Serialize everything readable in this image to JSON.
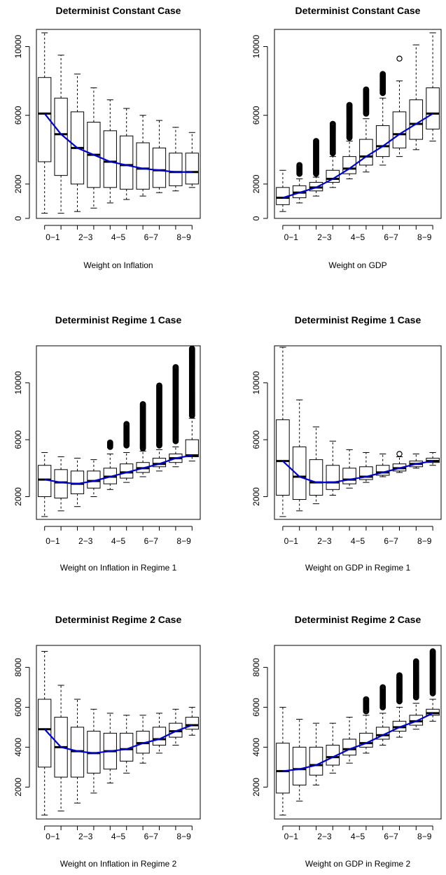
{
  "chart_data": [
    {
      "type": "box",
      "title": "Determinist Constant Case",
      "xlabel": "Weight on Inflation",
      "ylabel": "",
      "ylim": [
        0,
        11000
      ],
      "yticks": [
        0,
        2000,
        6000,
        10000
      ],
      "xtick_labels": [
        "0−1",
        "2−3",
        "4−5",
        "6−7",
        "8−9"
      ],
      "grid": false,
      "boxes": [
        {
          "lw": 300,
          "q1": 3300,
          "med": 6100,
          "q3": 8200,
          "uw": 10800,
          "outliers": []
        },
        {
          "lw": 300,
          "q1": 2500,
          "med": 4900,
          "q3": 7000,
          "uw": 9500,
          "outliers": []
        },
        {
          "lw": 400,
          "q1": 2000,
          "med": 4100,
          "q3": 6200,
          "uw": 8400,
          "outliers": []
        },
        {
          "lw": 600,
          "q1": 1800,
          "med": 3700,
          "q3": 5600,
          "uw": 7600,
          "outliers": []
        },
        {
          "lw": 900,
          "q1": 1800,
          "med": 3300,
          "q3": 5100,
          "uw": 6900,
          "outliers": []
        },
        {
          "lw": 1100,
          "q1": 1700,
          "med": 3100,
          "q3": 4800,
          "uw": 6400,
          "outliers": []
        },
        {
          "lw": 1300,
          "q1": 1700,
          "med": 2900,
          "q3": 4400,
          "uw": 6000,
          "outliers": []
        },
        {
          "lw": 1500,
          "q1": 1800,
          "med": 2800,
          "q3": 4100,
          "uw": 5700,
          "outliers": []
        },
        {
          "lw": 1600,
          "q1": 1900,
          "med": 2700,
          "q3": 3800,
          "uw": 5300,
          "outliers": []
        },
        {
          "lw": 1800,
          "q1": 2000,
          "med": 2700,
          "q3": 3800,
          "uw": 5000,
          "outliers": []
        }
      ],
      "trend_line": [
        6100,
        4900,
        4100,
        3700,
        3300,
        3100,
        2900,
        2800,
        2700,
        2700
      ]
    },
    {
      "type": "box",
      "title": "Determinist Constant Case",
      "xlabel": "Weight on GDP",
      "ylabel": "",
      "ylim": [
        0,
        11000
      ],
      "yticks": [
        0,
        2000,
        6000,
        10000
      ],
      "xtick_labels": [
        "0−1",
        "2−3",
        "4−5",
        "6−7",
        "8−9"
      ],
      "grid": false,
      "boxes": [
        {
          "lw": 400,
          "q1": 800,
          "med": 1200,
          "q3": 1800,
          "uw": 2800,
          "outliers": []
        },
        {
          "lw": 900,
          "q1": 1200,
          "med": 1500,
          "q3": 1900,
          "uw": 2300,
          "outliers": [
            2600,
            3100
          ]
        },
        {
          "lw": 1300,
          "q1": 1600,
          "med": 1800,
          "q3": 2100,
          "uw": 2400,
          "outliers": [
            2600,
            4500
          ]
        },
        {
          "lw": 1800,
          "q1": 2100,
          "med": 2300,
          "q3": 2800,
          "uw": 3600,
          "outliers": [
            3800,
            5500
          ]
        },
        {
          "lw": 2300,
          "q1": 2600,
          "med": 2900,
          "q3": 3600,
          "uw": 4500,
          "outliers": [
            4700,
            6600
          ]
        },
        {
          "lw": 2700,
          "q1": 3100,
          "med": 3600,
          "q3": 4600,
          "uw": 5800,
          "outliers": [
            6100,
            7500
          ]
        },
        {
          "lw": 3100,
          "q1": 3600,
          "med": 4200,
          "q3": 5400,
          "uw": 7000,
          "outliers": [
            7300,
            8400
          ]
        },
        {
          "lw": 3600,
          "q1": 4100,
          "med": 4900,
          "q3": 6200,
          "uw": 8000,
          "outliers": [
            9300
          ]
        },
        {
          "lw": 4000,
          "q1": 4600,
          "med": 5500,
          "q3": 6900,
          "uw": 10100,
          "outliers": []
        },
        {
          "lw": 4500,
          "q1": 5200,
          "med": 6100,
          "q3": 7600,
          "uw": 10800,
          "outliers": []
        }
      ],
      "trend_line": [
        1200,
        1500,
        1800,
        2300,
        2900,
        3600,
        4200,
        4900,
        5500,
        6100
      ]
    },
    {
      "type": "box",
      "title": "Determinist Regime 1 Case",
      "xlabel": "Weight on Inflation in Regime 1",
      "ylabel": "",
      "ylim": [
        400,
        12600
      ],
      "yticks": [
        2000,
        6000,
        10000
      ],
      "xtick_labels": [
        "0−1",
        "2−3",
        "4−5",
        "6−7",
        "8−9"
      ],
      "grid": false,
      "boxes": [
        {
          "lw": 600,
          "q1": 2000,
          "med": 3200,
          "q3": 4200,
          "uw": 5100,
          "outliers": []
        },
        {
          "lw": 1000,
          "q1": 1900,
          "med": 3000,
          "q3": 3900,
          "uw": 4800,
          "outliers": []
        },
        {
          "lw": 1300,
          "q1": 2200,
          "med": 2900,
          "q3": 3800,
          "uw": 4700,
          "outliers": []
        },
        {
          "lw": 2000,
          "q1": 2600,
          "med": 3100,
          "q3": 3800,
          "uw": 4600,
          "outliers": []
        },
        {
          "lw": 2500,
          "q1": 2900,
          "med": 3400,
          "q3": 4000,
          "uw": 5000,
          "outliers": [
            5500,
            5800
          ]
        },
        {
          "lw": 3000,
          "q1": 3300,
          "med": 3700,
          "q3": 4300,
          "uw": 5100,
          "outliers": [
            5600,
            7100
          ]
        },
        {
          "lw": 3400,
          "q1": 3700,
          "med": 4000,
          "q3": 4400,
          "uw": 5200,
          "outliers": [
            5400,
            8500
          ]
        },
        {
          "lw": 3800,
          "q1": 4100,
          "med": 4300,
          "q3": 4700,
          "uw": 5300,
          "outliers": [
            5600,
            9800
          ]
        },
        {
          "lw": 4100,
          "q1": 4400,
          "med": 4700,
          "q3": 5000,
          "uw": 5500,
          "outliers": [
            5900,
            11100
          ]
        },
        {
          "lw": 4500,
          "q1": 4800,
          "med": 4900,
          "q3": 6000,
          "uw": 7500,
          "outliers": [
            7700,
            12400
          ]
        }
      ],
      "trend_line": [
        3200,
        3000,
        2900,
        3100,
        3400,
        3700,
        4000,
        4300,
        4700,
        4900
      ]
    },
    {
      "type": "box",
      "title": "Determinist Regime 1 Case",
      "xlabel": "Weight on GDP in Regime 1",
      "ylabel": "",
      "ylim": [
        400,
        12600
      ],
      "yticks": [
        2000,
        6000,
        10000
      ],
      "xtick_labels": [
        "0−1",
        "2−3",
        "4−5",
        "6−7",
        "8−9"
      ],
      "grid": false,
      "boxes": [
        {
          "lw": 600,
          "q1": 2100,
          "med": 4500,
          "q3": 7400,
          "uw": 12500,
          "outliers": []
        },
        {
          "lw": 1000,
          "q1": 1800,
          "med": 3400,
          "q3": 5500,
          "uw": 8800,
          "outliers": []
        },
        {
          "lw": 1500,
          "q1": 2100,
          "med": 3000,
          "q3": 4600,
          "uw": 6900,
          "outliers": []
        },
        {
          "lw": 2100,
          "q1": 2500,
          "med": 3000,
          "q3": 4200,
          "uw": 5900,
          "outliers": []
        },
        {
          "lw": 2600,
          "q1": 2900,
          "med": 3200,
          "q3": 4000,
          "uw": 5300,
          "outliers": []
        },
        {
          "lw": 3000,
          "q1": 3200,
          "med": 3400,
          "q3": 4100,
          "uw": 5100,
          "outliers": []
        },
        {
          "lw": 3400,
          "q1": 3500,
          "med": 3700,
          "q3": 4200,
          "uw": 5000,
          "outliers": []
        },
        {
          "lw": 3700,
          "q1": 3800,
          "med": 4000,
          "q3": 4300,
          "uw": 4800,
          "outliers": [
            5000
          ]
        },
        {
          "lw": 4000,
          "q1": 4100,
          "med": 4300,
          "q3": 4500,
          "uw": 5000,
          "outliers": []
        },
        {
          "lw": 4200,
          "q1": 4400,
          "med": 4500,
          "q3": 4700,
          "uw": 5100,
          "outliers": []
        }
      ],
      "trend_line": [
        4500,
        3400,
        3000,
        3000,
        3200,
        3400,
        3700,
        4000,
        4300,
        4500
      ]
    },
    {
      "type": "box",
      "title": "Determinist Regime 2 Case",
      "xlabel": "Weight on Inflation in Regime 2",
      "ylabel": "",
      "ylim": [
        400,
        9100
      ],
      "yticks": [
        2000,
        4000,
        6000,
        8000
      ],
      "xtick_labels": [
        "0−1",
        "2−3",
        "4−5",
        "6−7",
        "8−9"
      ],
      "grid": false,
      "boxes": [
        {
          "lw": 600,
          "q1": 3000,
          "med": 4900,
          "q3": 6400,
          "uw": 8800,
          "outliers": []
        },
        {
          "lw": 800,
          "q1": 2500,
          "med": 4000,
          "q3": 5500,
          "uw": 7100,
          "outliers": []
        },
        {
          "lw": 1200,
          "q1": 2500,
          "med": 3800,
          "q3": 5000,
          "uw": 6400,
          "outliers": []
        },
        {
          "lw": 1700,
          "q1": 2700,
          "med": 3700,
          "q3": 4800,
          "uw": 5900,
          "outliers": []
        },
        {
          "lw": 2200,
          "q1": 2900,
          "med": 3800,
          "q3": 4700,
          "uw": 5700,
          "outliers": []
        },
        {
          "lw": 2700,
          "q1": 3300,
          "med": 3900,
          "q3": 4700,
          "uw": 5600,
          "outliers": []
        },
        {
          "lw": 3200,
          "q1": 3700,
          "med": 4200,
          "q3": 4800,
          "uw": 5600,
          "outliers": []
        },
        {
          "lw": 3700,
          "q1": 4100,
          "med": 4400,
          "q3": 5000,
          "uw": 5700,
          "outliers": []
        },
        {
          "lw": 4100,
          "q1": 4500,
          "med": 4800,
          "q3": 5200,
          "uw": 5900,
          "outliers": []
        },
        {
          "lw": 4600,
          "q1": 4900,
          "med": 5100,
          "q3": 5500,
          "uw": 6000,
          "outliers": []
        }
      ],
      "trend_line": [
        4900,
        4000,
        3800,
        3700,
        3800,
        3900,
        4200,
        4400,
        4800,
        5100
      ]
    },
    {
      "type": "box",
      "title": "Determinist Regime 2 Case",
      "xlabel": "Weight on GDP in Regime 2",
      "ylabel": "",
      "ylim": [
        400,
        9100
      ],
      "yticks": [
        2000,
        4000,
        6000,
        8000
      ],
      "xtick_labels": [
        "0−1",
        "2−3",
        "4−5",
        "6−7",
        "8−9"
      ],
      "grid": false,
      "boxes": [
        {
          "lw": 600,
          "q1": 1700,
          "med": 2800,
          "q3": 4200,
          "uw": 6000,
          "outliers": []
        },
        {
          "lw": 1300,
          "q1": 2100,
          "med": 2900,
          "q3": 4000,
          "uw": 5400,
          "outliers": []
        },
        {
          "lw": 2100,
          "q1": 2600,
          "med": 3100,
          "q3": 4000,
          "uw": 5200,
          "outliers": []
        },
        {
          "lw": 2700,
          "q1": 3100,
          "med": 3500,
          "q3": 4100,
          "uw": 5200,
          "outliers": []
        },
        {
          "lw": 3200,
          "q1": 3600,
          "med": 3900,
          "q3": 4400,
          "uw": 5500,
          "outliers": []
        },
        {
          "lw": 3700,
          "q1": 4000,
          "med": 4200,
          "q3": 4700,
          "uw": 5600,
          "outliers": [
            5800,
            6400
          ]
        },
        {
          "lw": 4100,
          "q1": 4400,
          "med": 4600,
          "q3": 5000,
          "uw": 5700,
          "outliers": [
            6000,
            7000
          ]
        },
        {
          "lw": 4500,
          "q1": 4800,
          "med": 5000,
          "q3": 5300,
          "uw": 6000,
          "outliers": [
            6300,
            7600
          ]
        },
        {
          "lw": 4900,
          "q1": 5100,
          "med": 5300,
          "q3": 5600,
          "uw": 6200,
          "outliers": [
            6500,
            8300
          ]
        },
        {
          "lw": 5300,
          "q1": 5600,
          "med": 5700,
          "q3": 5900,
          "uw": 6400,
          "outliers": [
            6700,
            8800
          ]
        }
      ],
      "trend_line": [
        2800,
        2900,
        3100,
        3500,
        3900,
        4200,
        4600,
        5000,
        5300,
        5700
      ]
    }
  ],
  "colors": {
    "box_fill": "#ffffff",
    "box_stroke": "#000000",
    "median": "#000000",
    "trend_line": "#0000cc"
  }
}
